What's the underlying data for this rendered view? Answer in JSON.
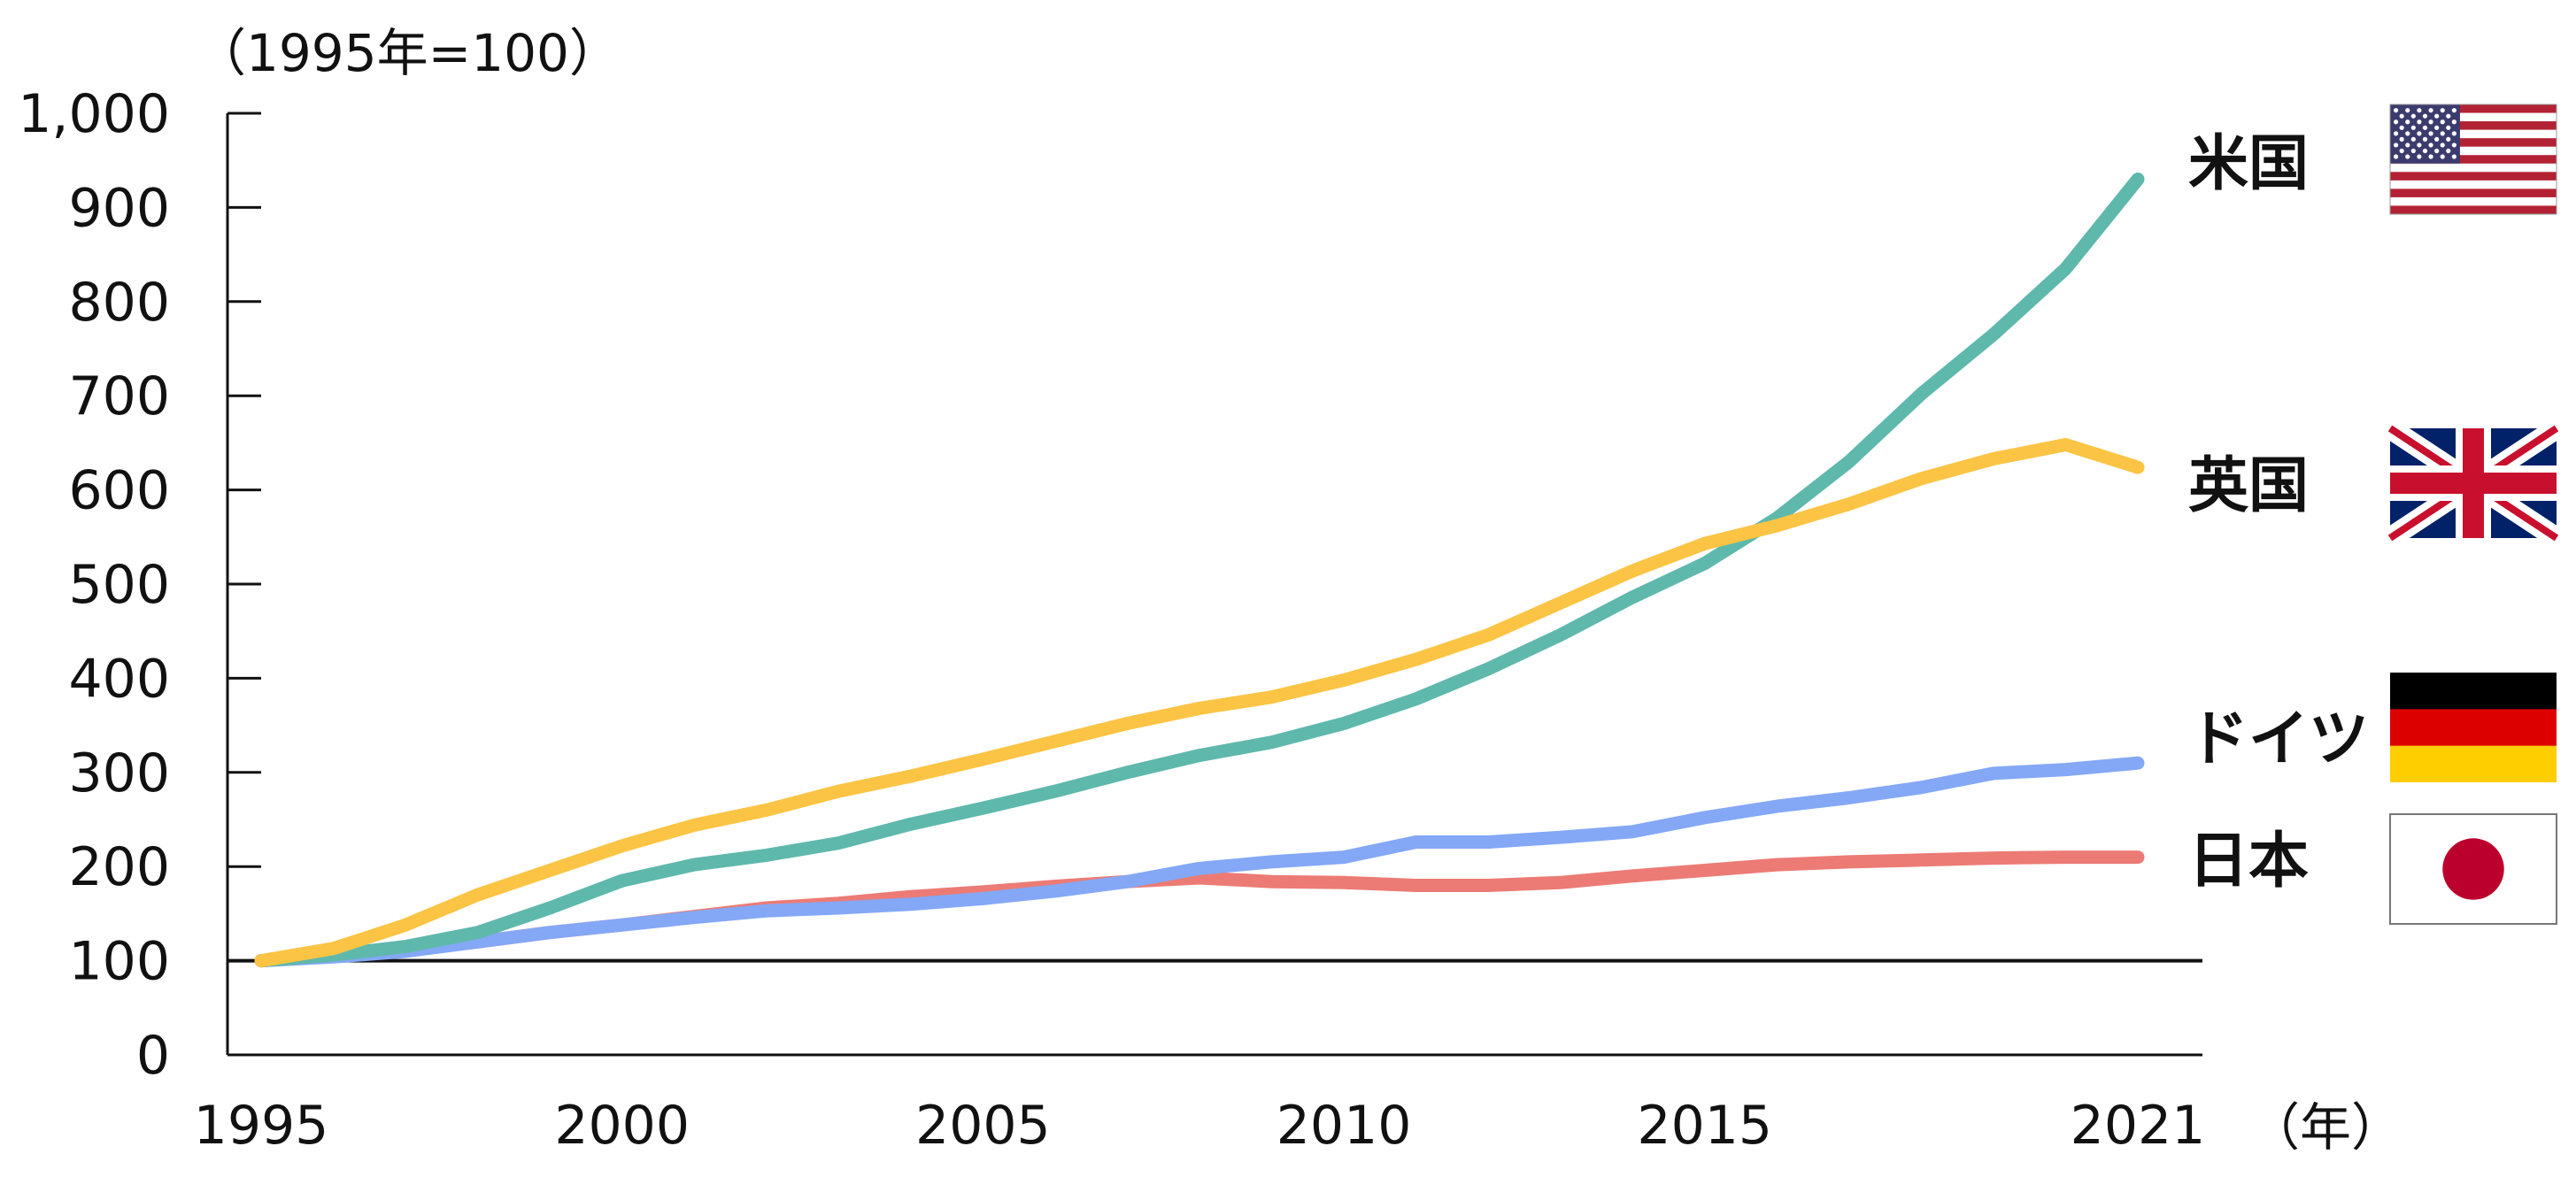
{
  "chart_data": {
    "type": "line",
    "title": "",
    "ylabel": "（1995年=100）",
    "xlabel": "（年）",
    "xlim": [
      1995,
      2021
    ],
    "ylim": [
      0,
      1000
    ],
    "x_ticks": [
      {
        "value": 1995,
        "label": "1995"
      },
      {
        "value": 2000,
        "label": "2000"
      },
      {
        "value": 2005,
        "label": "2005"
      },
      {
        "value": 2010,
        "label": "2010"
      },
      {
        "value": 2015,
        "label": "2015"
      },
      {
        "value": 2021,
        "label": "2021"
      }
    ],
    "y_ticks": [
      {
        "value": 0,
        "label": "0"
      },
      {
        "value": 100,
        "label": "100"
      },
      {
        "value": 200,
        "label": "200"
      },
      {
        "value": 300,
        "label": "300"
      },
      {
        "value": 400,
        "label": "400"
      },
      {
        "value": 500,
        "label": "500"
      },
      {
        "value": 600,
        "label": "600"
      },
      {
        "value": 700,
        "label": "700"
      },
      {
        "value": 800,
        "label": "800"
      },
      {
        "value": 900,
        "label": "900"
      },
      {
        "value": 1000,
        "label": "1,000"
      }
    ],
    "reference_line": 100,
    "grid": false,
    "legend": "right",
    "x": [
      1995,
      1996,
      1997,
      1998,
      1999,
      2000,
      2001,
      2002,
      2003,
      2004,
      2005,
      2006,
      2007,
      2008,
      2009,
      2010,
      2011,
      2012,
      2013,
      2014,
      2015,
      2016,
      2017,
      2018,
      2019,
      2020,
      2021
    ],
    "series": [
      {
        "name": "米国",
        "flag": "usa-flag-icon",
        "color": "#5fb8ac",
        "values": [
          100,
          106,
          115,
          130,
          156,
          185,
          202,
          212,
          225,
          245,
          262,
          280,
          300,
          318,
          332,
          352,
          378,
          410,
          446,
          486,
          522,
          570,
          630,
          702,
          765,
          835,
          930
        ]
      },
      {
        "name": "英国",
        "flag": "uk-flag-icon",
        "color": "#fcc444",
        "values": [
          100,
          113,
          138,
          170,
          196,
          222,
          244,
          260,
          280,
          296,
          314,
          333,
          352,
          368,
          380,
          398,
          420,
          446,
          480,
          514,
          543,
          562,
          585,
          612,
          633,
          648,
          624
        ]
      },
      {
        "name": "ドイツ",
        "flag": "germany-flag-icon",
        "color": "#84a8f6",
        "values": [
          100,
          104,
          110,
          120,
          130,
          138,
          146,
          153,
          156,
          160,
          166,
          174,
          184,
          198,
          205,
          210,
          226,
          226,
          231,
          237,
          252,
          264,
          273,
          284,
          299,
          303,
          310
        ]
      },
      {
        "name": "日本",
        "flag": "japan-flag-icon",
        "color": "#ec7b75",
        "values": [
          100,
          106,
          112,
          120,
          130,
          138,
          147,
          156,
          161,
          168,
          173,
          179,
          184,
          188,
          184,
          183,
          180,
          180,
          183,
          190,
          196,
          202,
          205,
          207,
          209,
          210,
          210
        ]
      }
    ]
  }
}
